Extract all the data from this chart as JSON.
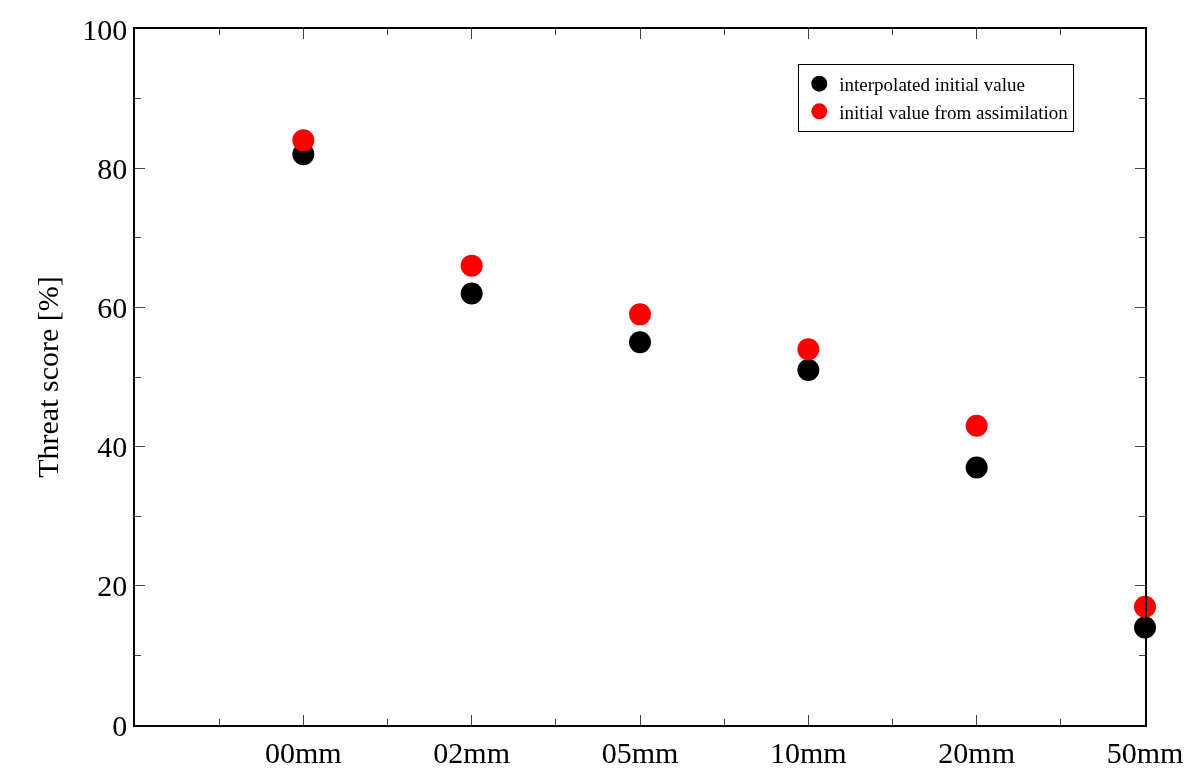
{
  "chart_data": {
    "type": "scatter",
    "ylabel": "Threat score [%]",
    "categories": [
      "00mm",
      "02mm",
      "05mm",
      "10mm",
      "20mm",
      "50mm"
    ],
    "series": [
      {
        "name": "interpolated initial value",
        "color": "#000000",
        "values": [
          82,
          62,
          55,
          51,
          37,
          14
        ]
      },
      {
        "name": "initial value from assimilation",
        "color": "#ff0000",
        "values": [
          84,
          66,
          59,
          54,
          43,
          17
        ]
      }
    ],
    "ylim": [
      0,
      100
    ],
    "yticks": [
      0,
      20,
      40,
      60,
      80,
      100
    ],
    "legend": "top right",
    "marker": "circle"
  }
}
